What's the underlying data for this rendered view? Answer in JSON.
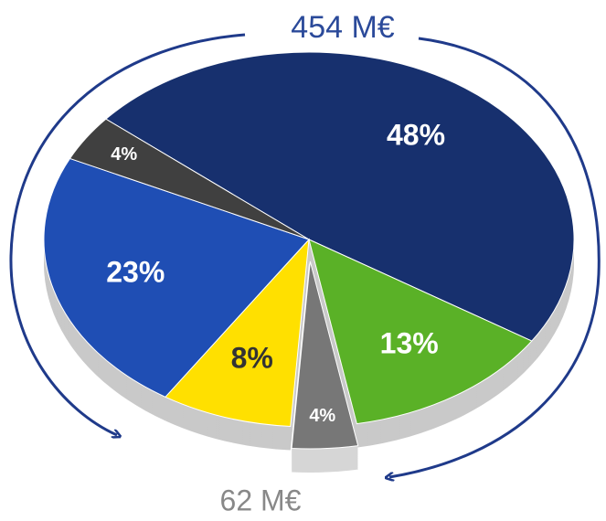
{
  "chart_data": {
    "type": "pie",
    "values": [
      48,
      13,
      4,
      8,
      23,
      4
    ],
    "value_labels": [
      "48%",
      "13%",
      "4%",
      "8%",
      "23%",
      "4%"
    ],
    "colors": [
      "#17306e",
      "#5ab127",
      "#777777",
      "#ffe000",
      "#1f4eb4",
      "#404040"
    ],
    "label_colors": [
      "#ffffff",
      "#ffffff",
      "#ffffff",
      "#333333",
      "#ffffff",
      "#ffffff"
    ],
    "explode": [
      0,
      0,
      1,
      0,
      0,
      0
    ],
    "annotations": [
      "454 M€",
      "62 M€"
    ]
  }
}
